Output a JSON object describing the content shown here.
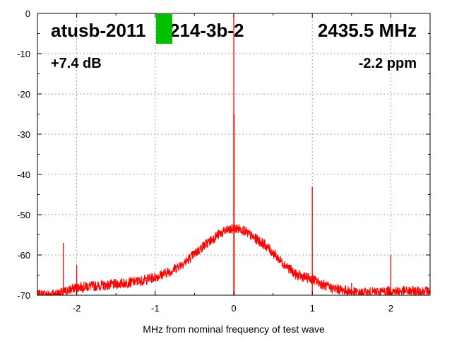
{
  "chart_data": {
    "type": "line",
    "title": "",
    "xlabel": "MHz from nominal frequency of test wave",
    "ylabel": "",
    "xlim": [
      -2.5,
      2.5
    ],
    "ylim": [
      -70,
      0
    ],
    "x_ticks": [
      -2,
      -1,
      0,
      1,
      2
    ],
    "y_ticks": [
      0,
      -10,
      -20,
      -30,
      -40,
      -50,
      -60,
      -70
    ],
    "grid": true,
    "series_color": "#ff0000",
    "marker_color": "#00c000",
    "annotations": {
      "device": "atusb-2011",
      "device_suffix": "214-3b-2",
      "frequency": "2435.5 MHz",
      "gain": "+7.4 dB",
      "ppm": "-2.2 ppm"
    },
    "series": [
      {
        "values_description_x": [
          -2.5,
          -2.2,
          -2.0,
          -1.6,
          -1.2,
          -1.0,
          -0.8,
          -0.6,
          -0.4,
          -0.2,
          -0.1,
          0.0,
          0.1,
          0.2,
          0.4,
          0.6,
          0.8,
          1.0,
          1.2,
          1.6,
          2.0,
          2.5
        ],
        "values_description_y": [
          -70,
          -69.5,
          -68,
          -67.5,
          -66.5,
          -65.5,
          -64,
          -61.5,
          -58,
          -55,
          -54,
          -53.5,
          -53.5,
          -55,
          -57.5,
          -61.5,
          -65,
          -66,
          -68,
          -69.5,
          -69,
          -69
        ],
        "spikes": [
          {
            "x": -2.17,
            "y": -57
          },
          {
            "x": -2.0,
            "y": -62.5
          },
          {
            "x": 0.0,
            "y": 0
          },
          {
            "x": 0.005,
            "y": -25
          },
          {
            "x": 1.0,
            "y": -43
          },
          {
            "x": 1.5,
            "y": -67
          },
          {
            "x": 2.0,
            "y": -60
          }
        ]
      }
    ]
  }
}
